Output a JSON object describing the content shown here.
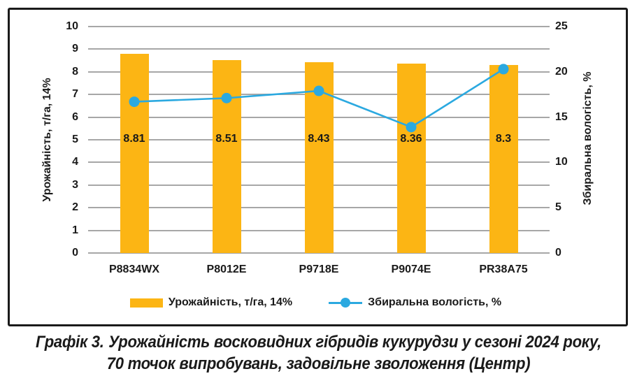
{
  "chart_data": {
    "type": "bar",
    "subtype": "bar-and-line-dual-axis",
    "categories": [
      "P8834WX",
      "P8012E",
      "P9718E",
      "P9074E",
      "PR38A75"
    ],
    "series": [
      {
        "name": "Урожайність, т/га, 14%",
        "type": "bar",
        "axis": "left",
        "values": [
          8.81,
          8.51,
          8.43,
          8.36,
          8.3
        ],
        "labels": [
          "8.81",
          "8.51",
          "8.43",
          "8.36",
          "8.3"
        ]
      },
      {
        "name": "Збиральна вологість, %",
        "type": "line",
        "axis": "right",
        "values": [
          16.7,
          17.1,
          17.9,
          13.9,
          20.3
        ]
      }
    ],
    "left_axis": {
      "title": "Урожайність, т/га, 14%",
      "min": 0,
      "max": 10,
      "step": 1,
      "ticks": [
        "10",
        "9",
        "8",
        "7",
        "6",
        "5",
        "4",
        "3",
        "2",
        "1",
        "0"
      ]
    },
    "right_axis": {
      "title": "Збиральна вологість, %",
      "min": 0,
      "max": 25,
      "step": 5,
      "ticks": [
        "25",
        "20",
        "15",
        "10",
        "5",
        "0"
      ]
    },
    "grid": true,
    "legend_position": "bottom"
  },
  "caption": {
    "prefix": "Графік 3.",
    "line1": "Урожайність восковидних гібридів кукурудзи у сезоні 2024 року,",
    "line2": "70 точок випробувань, задовільне зволоження (Центр)"
  },
  "colors": {
    "bar": "#FCB514",
    "line": "#2BA9E0",
    "grid": "#A7A7A7",
    "text": "#1A1A1A",
    "frame": "#1A1A1A"
  }
}
